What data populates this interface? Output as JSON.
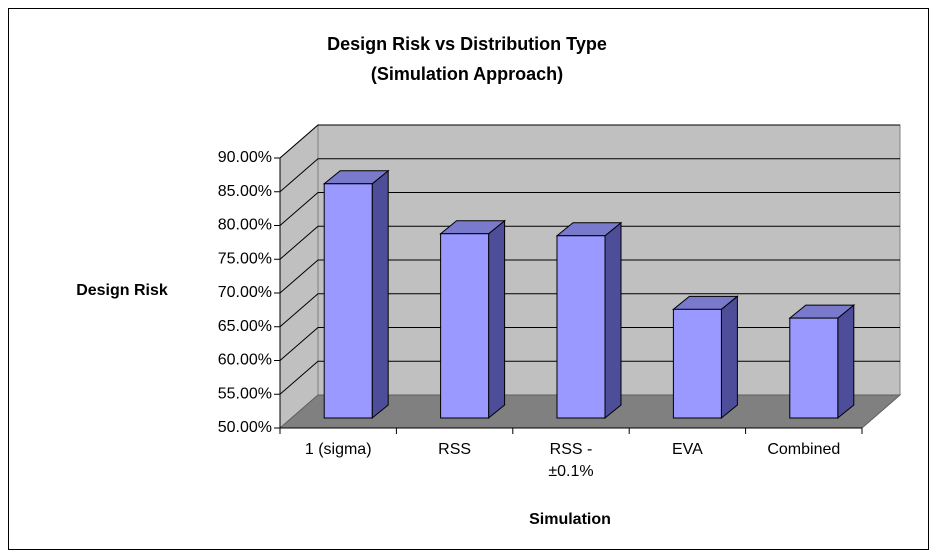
{
  "chart_data": {
    "type": "bar3d",
    "title": "Design Risk vs Distribution Type",
    "subtitle": "(Simulation Approach)",
    "y_label": "Design Risk",
    "x_label": "Simulation",
    "categories": [
      "1 (sigma)",
      "RSS",
      "RSS - ±0.1%",
      "EVA",
      "Combined"
    ],
    "values": [
      84.7,
      77.3,
      77.0,
      66.1,
      64.8
    ],
    "color": "#9999ff",
    "ylim": [
      50,
      90
    ],
    "yticks": [
      {
        "value": 50,
        "label": "50.00%"
      },
      {
        "value": 55,
        "label": "55.00%"
      },
      {
        "value": 60,
        "label": "60.00%"
      },
      {
        "value": 65,
        "label": "65.00%"
      },
      {
        "value": 70,
        "label": "70.00%"
      },
      {
        "value": 75,
        "label": "75.00%"
      },
      {
        "value": 80,
        "label": "80.00%"
      },
      {
        "value": 85,
        "label": "85.00%"
      },
      {
        "value": 90,
        "label": "90.00%"
      }
    ],
    "grid": true
  }
}
